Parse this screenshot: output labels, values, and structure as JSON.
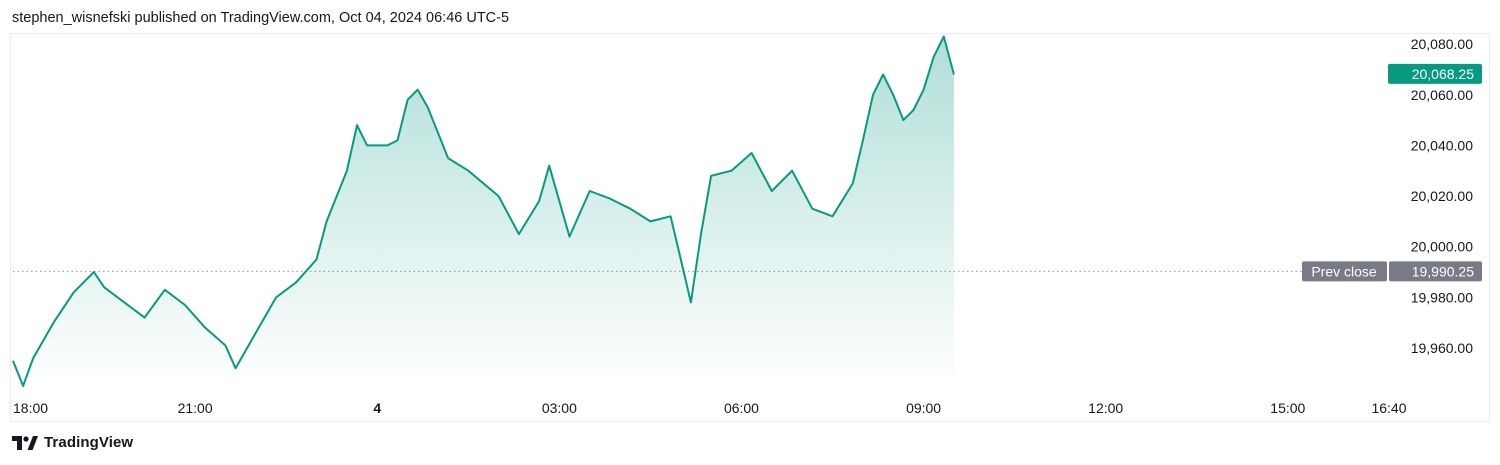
{
  "header": {
    "publisher_line": "stephen_wisnefski published on TradingView.com, Oct 04, 2024 06:46 UTC-5"
  },
  "footer": {
    "brand": "TradingView"
  },
  "colors": {
    "line": "#089981",
    "area_top": "#089981",
    "price_tag": "#089981",
    "prev_close_tag": "#787b86",
    "prev_close_line": "#9598a1",
    "axis_text": "#131722"
  },
  "chart_data": {
    "type": "area",
    "title": "",
    "x_unit": "time (UTC-5), Oct 03 18:00 to Oct 04 16:40",
    "x_ticks": [
      {
        "label": "18:00",
        "x": "18:00"
      },
      {
        "label": "21:00",
        "x": "21:00"
      },
      {
        "label": "4",
        "x": "00:00",
        "bold": true
      },
      {
        "label": "03:00",
        "x": "03:00"
      },
      {
        "label": "06:00",
        "x": "06:00"
      },
      {
        "label": "09:00",
        "x": "09:00"
      },
      {
        "label": "12:00",
        "x": "12:00"
      },
      {
        "label": "15:00",
        "x": "15:00"
      },
      {
        "label": "16:40",
        "x": "16:40"
      }
    ],
    "y_ticks": [
      "19,960.00",
      "19,980.00",
      "20,000.00",
      "20,020.00",
      "20,040.00",
      "20,060.00",
      "20,080.00"
    ],
    "ylim": [
      19945,
      20084
    ],
    "last_price": {
      "label": "20,068.25",
      "value": 20068.25
    },
    "prev_close": {
      "label": "Prev close",
      "value_label": "19,990.25",
      "value": 19990.25
    },
    "grid": false,
    "series": [
      {
        "points": [
          [
            "18:00",
            19955
          ],
          [
            "18:10",
            19945
          ],
          [
            "18:20",
            19956
          ],
          [
            "18:40",
            19970
          ],
          [
            "19:00",
            19982
          ],
          [
            "19:20",
            19990
          ],
          [
            "19:30",
            19984
          ],
          [
            "19:50",
            19978
          ],
          [
            "20:10",
            19972
          ],
          [
            "20:30",
            19983
          ],
          [
            "20:50",
            19977
          ],
          [
            "21:10",
            19968
          ],
          [
            "21:30",
            19961
          ],
          [
            "21:40",
            19952
          ],
          [
            "22:00",
            19966
          ],
          [
            "22:20",
            19980
          ],
          [
            "22:40",
            19986
          ],
          [
            "23:00",
            19995
          ],
          [
            "23:10",
            20010
          ],
          [
            "23:30",
            20030
          ],
          [
            "23:40",
            20048
          ],
          [
            "23:50",
            20040
          ],
          [
            "00:10",
            20040
          ],
          [
            "00:20",
            20042
          ],
          [
            "00:30",
            20058
          ],
          [
            "00:40",
            20062
          ],
          [
            "00:50",
            20055
          ],
          [
            "01:10",
            20035
          ],
          [
            "01:30",
            20030
          ],
          [
            "02:00",
            20020
          ],
          [
            "02:20",
            20005
          ],
          [
            "02:40",
            20018
          ],
          [
            "02:50",
            20032
          ],
          [
            "03:10",
            20004
          ],
          [
            "03:30",
            20022
          ],
          [
            "03:50",
            20019
          ],
          [
            "04:10",
            20015
          ],
          [
            "04:30",
            20010
          ],
          [
            "04:50",
            20012
          ],
          [
            "05:00",
            19995
          ],
          [
            "05:10",
            19978
          ],
          [
            "05:20",
            20005
          ],
          [
            "05:30",
            20028
          ],
          [
            "05:50",
            20030
          ],
          [
            "06:10",
            20037
          ],
          [
            "06:30",
            20022
          ],
          [
            "06:50",
            20030
          ],
          [
            "07:10",
            20015
          ],
          [
            "07:30",
            20012
          ],
          [
            "07:50",
            20025
          ],
          [
            "08:00",
            20042
          ],
          [
            "08:10",
            20060
          ],
          [
            "08:20",
            20068
          ],
          [
            "08:30",
            20060
          ],
          [
            "08:40",
            20050
          ],
          [
            "08:50",
            20054
          ],
          [
            "09:00",
            20062
          ],
          [
            "09:10",
            20075
          ],
          [
            "09:20",
            20083
          ],
          [
            "09:30",
            20068
          ]
        ]
      }
    ]
  }
}
